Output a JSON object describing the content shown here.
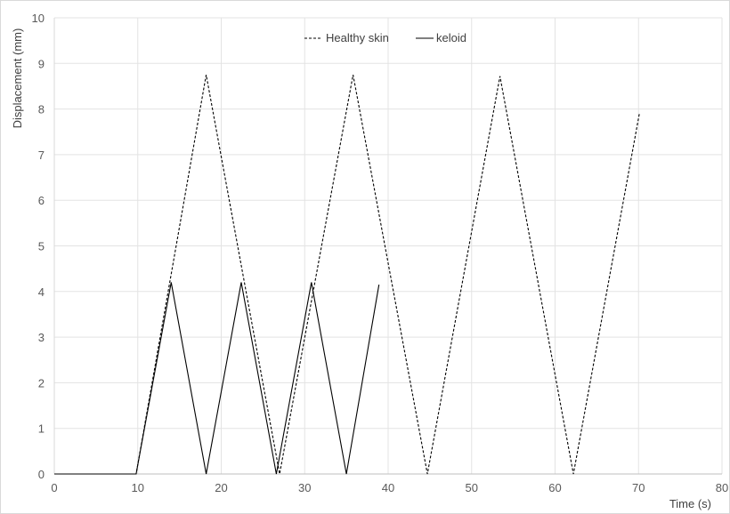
{
  "chart_data": {
    "type": "line",
    "title": "",
    "xlabel": "Time (s)",
    "ylabel": "Displacement (mm)",
    "xlim": [
      0,
      80
    ],
    "ylim": [
      0,
      10
    ],
    "x_ticks": [
      "0",
      "10",
      "20",
      "30",
      "40",
      "50",
      "60",
      "70",
      "80"
    ],
    "y_ticks": [
      "0",
      "1",
      "2",
      "3",
      "4",
      "5",
      "6",
      "7",
      "8",
      "9",
      "10"
    ],
    "grid": true,
    "legend_position": "top-center",
    "series": [
      {
        "name": "Healthy skin",
        "style": "dashed",
        "color": "#000000",
        "x": [
          0,
          9.8,
          18.2,
          27.0,
          35.8,
          44.7,
          53.4,
          62.2,
          70.1
        ],
        "y": [
          0,
          0,
          8.75,
          0,
          8.75,
          0,
          8.72,
          0,
          7.9
        ]
      },
      {
        "name": "keloid",
        "style": "solid",
        "color": "#000000",
        "x": [
          0,
          9.8,
          14.0,
          18.2,
          22.4,
          26.6,
          30.8,
          35.0,
          38.9
        ],
        "y": [
          0,
          0,
          4.2,
          0,
          4.2,
          0,
          4.2,
          0,
          4.15
        ]
      }
    ]
  }
}
